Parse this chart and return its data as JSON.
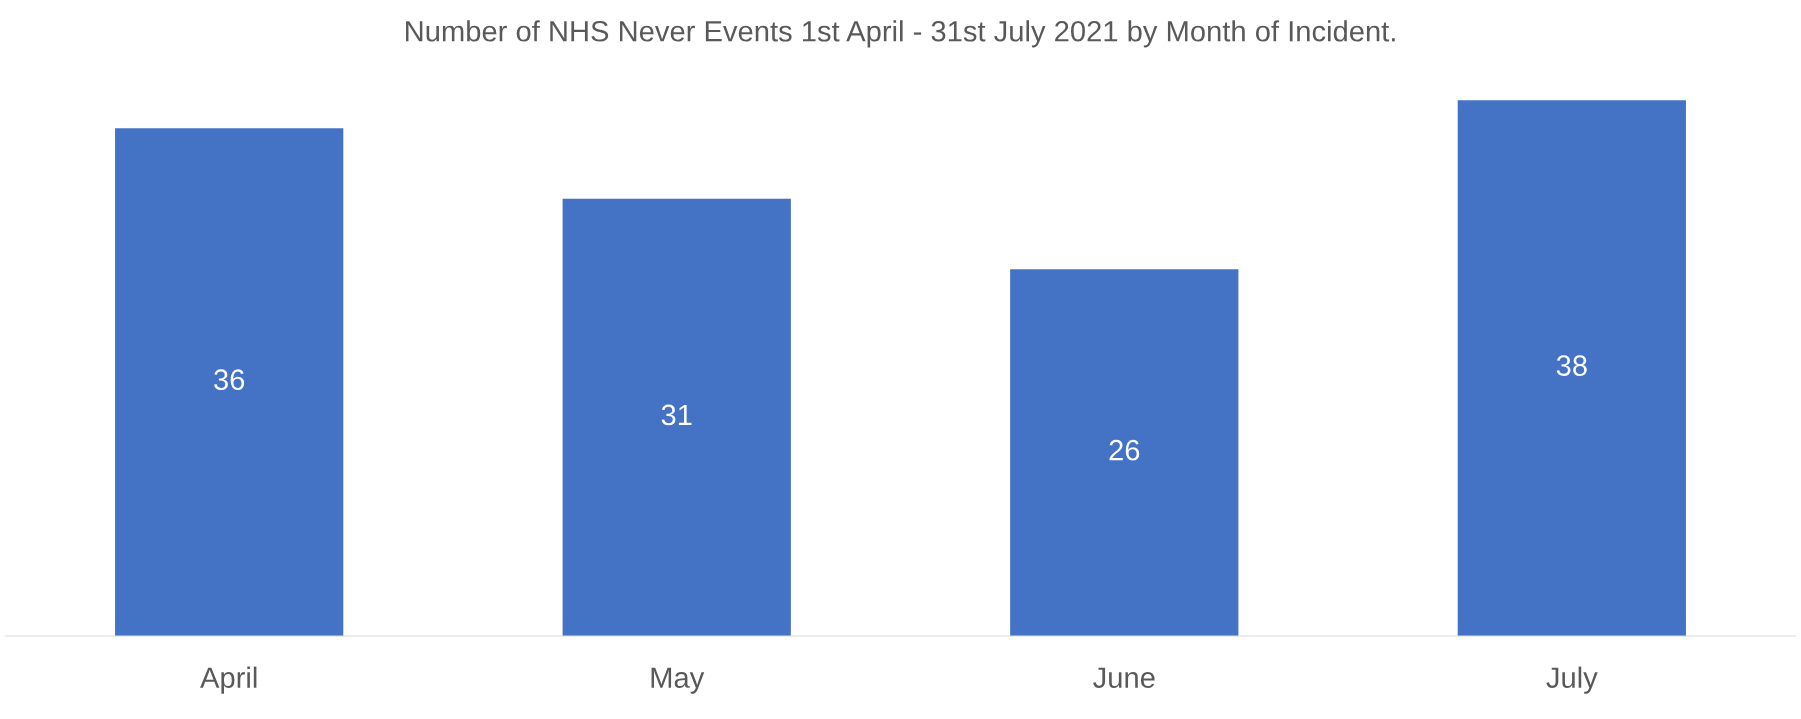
{
  "chart_data": {
    "type": "bar",
    "title": "Number of NHS Never Events 1st April - 31st July 2021 by Month of Incident.",
    "categories": [
      "April",
      "May",
      "June",
      "July"
    ],
    "values": [
      36,
      31,
      26,
      38
    ],
    "color": "#4472c4",
    "data_labels": true,
    "grid": false,
    "legend": false
  }
}
